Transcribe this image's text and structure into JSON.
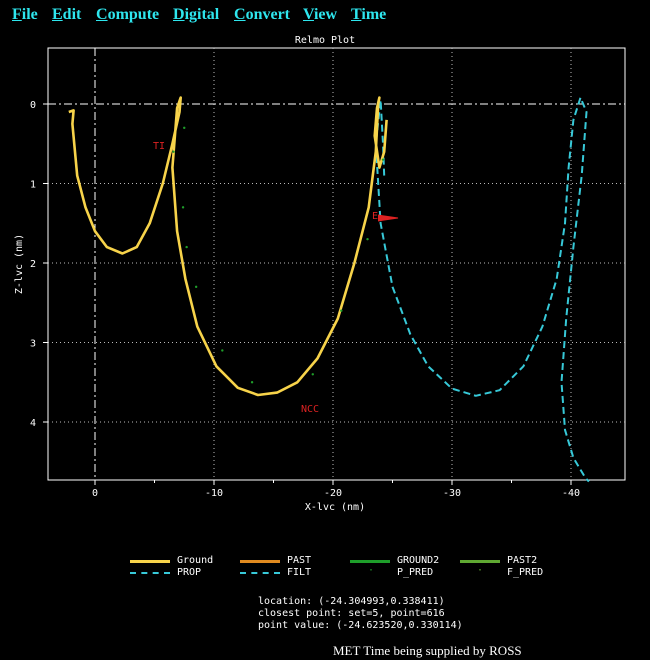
{
  "menu": {
    "file": "File",
    "edit": "Edit",
    "compute": "Compute",
    "digital": "Digital",
    "convert": "Convert",
    "view": "View",
    "time": "Time"
  },
  "plot": {
    "title": "Relmo Plot",
    "xlabel": "X-lvc  (nm)",
    "ylabel": "Z-lvc  (nm)",
    "xticks": [
      "0",
      "-10",
      "-20",
      "-30",
      "-40"
    ],
    "yticks": [
      "0",
      "1",
      "2",
      "3",
      "4"
    ],
    "annotations": [
      "TI",
      "NCC",
      "E"
    ]
  },
  "legend": {
    "ground": "Ground",
    "past": "PAST",
    "ground2": "GROUND2",
    "past2": "PAST2",
    "prop": "PROP",
    "filt": "FILT",
    "p_pred": "P_PRED",
    "f_pred": "F_PRED"
  },
  "colors": {
    "menu": "#2ee6ee",
    "ground": "#f7d34a",
    "past": "#e08a1f",
    "ground2": "#1e9e2a",
    "past2": "#5fa832",
    "prop": "#37c9d8",
    "filt": "#37c9d8"
  },
  "info": {
    "location": "location: (-24.304993,0.338411)",
    "closest": "closest point: set=5, point=616",
    "value": "point value: (-24.623520,0.330114)"
  },
  "status": "MET Time being supplied by ROSS",
  "chart_data": {
    "type": "line",
    "title": "Relmo Plot",
    "xlabel": "X-lvc  (nm)",
    "ylabel": "Z-lvc  (nm)",
    "xlim": [
      3,
      -44
    ],
    "ylim": [
      -0.6,
      4.75
    ],
    "grid": true,
    "series": [
      {
        "name": "Ground",
        "x": [
          2.2,
          1.8,
          1.9,
          1.5,
          0.8,
          0.0,
          -1.0,
          -2.3,
          -3.5,
          -4.6,
          -5.7,
          -6.5,
          -7.1,
          -7.2,
          -6.9,
          -6.5,
          -6.9,
          -7.6,
          -8.6,
          -10.2,
          -12.0,
          -13.7,
          -15.3,
          -17.0,
          -18.7,
          -20.4,
          -21.8,
          -23.0,
          -23.6,
          -23.8,
          -23.9,
          -23.7,
          -23.5,
          -23.9,
          -24.3,
          -24.5
        ],
        "y": [
          0.1,
          0.08,
          0.25,
          0.9,
          1.3,
          1.6,
          1.8,
          1.88,
          1.8,
          1.5,
          1.0,
          0.5,
          0.1,
          -0.08,
          0.05,
          0.8,
          1.6,
          2.2,
          2.8,
          3.3,
          3.57,
          3.66,
          3.63,
          3.5,
          3.2,
          2.7,
          2.0,
          1.3,
          0.6,
          0.0,
          -0.08,
          0.05,
          0.4,
          0.8,
          0.6,
          0.2
        ]
      },
      {
        "name": "FILT",
        "x": [
          -24.3,
          -24.2,
          -24.0,
          -23.6,
          -24.0,
          -25.0,
          -26.5,
          -28.0,
          -30.0,
          -32.0,
          -34.0,
          -36.0,
          -37.6,
          -38.8,
          -39.5,
          -39.8,
          -40.2,
          -40.8,
          -41.3,
          -40.9,
          -40.2,
          -39.6,
          -39.2,
          -39.5,
          -40.2,
          -40.8,
          -41.2,
          -41.5
        ],
        "y": [
          0.9,
          0.5,
          -0.05,
          0.5,
          1.5,
          2.3,
          2.9,
          3.3,
          3.58,
          3.67,
          3.6,
          3.3,
          2.8,
          2.2,
          1.5,
          0.8,
          0.2,
          -0.08,
          0.1,
          0.9,
          1.8,
          2.7,
          3.5,
          4.1,
          4.45,
          4.6,
          4.7,
          4.75
        ]
      }
    ]
  }
}
